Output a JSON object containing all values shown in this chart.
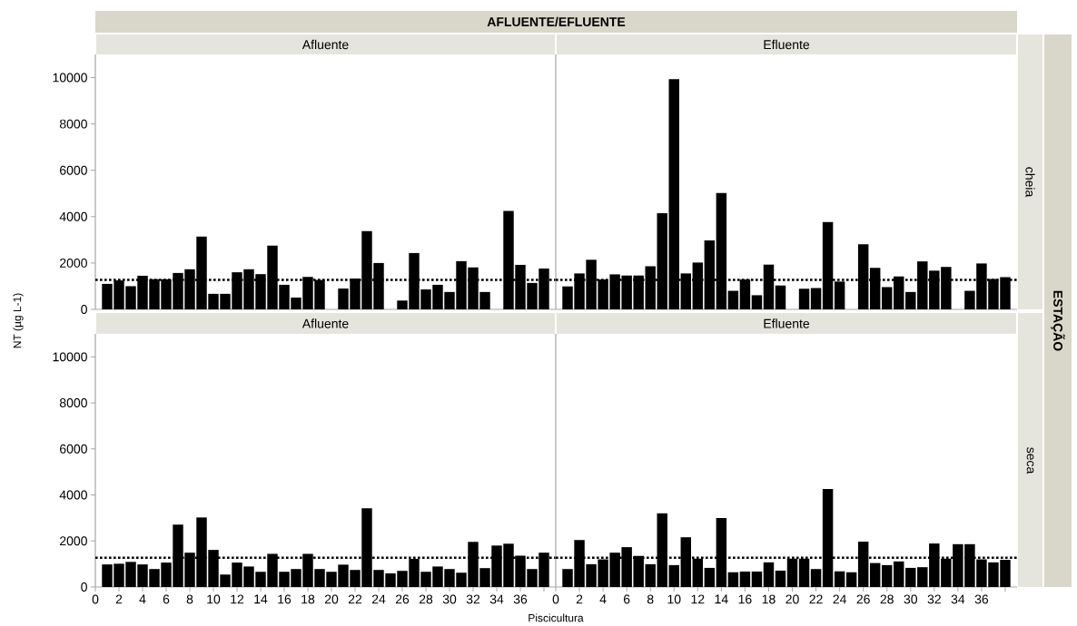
{
  "chart_data": [
    {
      "type": "bar",
      "title": "Afluente",
      "ylabel": "NT (µg L-1)",
      "annotations": [
        "AFLUENTE/EFLUENTE",
        "ESTAÇÃO"
      ],
      "color": "#000000",
      "tick_labels": "y",
      "x": [
        1,
        2,
        3,
        4,
        5,
        6,
        7,
        8,
        9,
        10,
        11,
        12,
        13,
        14,
        15,
        16,
        17,
        18,
        19,
        20,
        21,
        22,
        23,
        24,
        25,
        26,
        27,
        28,
        29,
        30,
        31,
        32,
        33,
        34,
        35,
        36,
        37,
        38
      ],
      "values": [
        1100,
        1250,
        1000,
        1450,
        1300,
        1300,
        1570,
        1730,
        3140,
        670,
        670,
        1600,
        1730,
        1520,
        2750,
        1060,
        510,
        1400,
        1270,
        null,
        900,
        1330,
        3380,
        2000,
        null,
        380,
        2430,
        860,
        1060,
        750,
        2080,
        1810,
        750,
        null,
        4250,
        1920,
        1140,
        1760
      ],
      "xlim": [
        0,
        39
      ],
      "ylim": [
        0,
        11000
      ],
      "yticks": [
        0,
        2000,
        4000,
        6000,
        8000,
        10000
      ],
      "ref_lines": [
        {
          "axis": "y",
          "value": 1270,
          "color": "#000000",
          "line_style": "dotted"
        }
      ]
    },
    {
      "type": "bar",
      "title": "Efluente",
      "annotations": [
        "cheia"
      ],
      "color": "#000000",
      "tick_labels": false,
      "x": [
        1,
        2,
        3,
        4,
        5,
        6,
        7,
        8,
        9,
        10,
        11,
        12,
        13,
        14,
        15,
        16,
        17,
        18,
        19,
        20,
        21,
        22,
        23,
        24,
        25,
        26,
        27,
        28,
        29,
        30,
        31,
        32,
        33,
        34,
        35,
        36,
        37,
        38
      ],
      "values": [
        990,
        1550,
        2140,
        1290,
        1510,
        1460,
        1460,
        1860,
        4150,
        9930,
        1550,
        2020,
        2970,
        5020,
        800,
        1290,
        610,
        1930,
        1030,
        null,
        890,
        920,
        3770,
        1200,
        null,
        2810,
        1790,
        960,
        1420,
        750,
        2070,
        1670,
        1830,
        null,
        800,
        1980,
        1310,
        1390
      ],
      "xlim": [
        0,
        39
      ],
      "ylim": [
        0,
        11000
      ],
      "yticks": [
        0,
        2000,
        4000,
        6000,
        8000,
        10000
      ],
      "ref_lines": [
        {
          "axis": "y",
          "value": 1270,
          "color": "#000000",
          "line_style": "dotted"
        }
      ]
    },
    {
      "type": "bar",
      "title": "Afluente",
      "xlabel": "Piscicultura",
      "color": "#000000",
      "x": [
        1,
        2,
        3,
        4,
        5,
        6,
        7,
        8,
        9,
        10,
        11,
        12,
        13,
        14,
        15,
        16,
        17,
        18,
        19,
        20,
        21,
        22,
        23,
        24,
        25,
        26,
        27,
        28,
        29,
        30,
        31,
        32,
        33,
        34,
        35,
        36,
        37,
        38
      ],
      "values": [
        980,
        1010,
        1090,
        980,
        780,
        1060,
        2710,
        1490,
        3020,
        1610,
        540,
        1060,
        890,
        660,
        1440,
        660,
        780,
        1440,
        780,
        660,
        970,
        740,
        3420,
        740,
        590,
        700,
        1220,
        660,
        890,
        780,
        620,
        1960,
        820,
        1800,
        1880,
        1360,
        780,
        1490
      ],
      "xlim": [
        0,
        39
      ],
      "xticks": [
        0,
        2,
        4,
        6,
        8,
        10,
        12,
        14,
        16,
        18,
        20,
        22,
        24,
        26,
        28,
        30,
        32,
        34,
        36,
        {
          "value": 38,
          "label": null
        }
      ],
      "ylim": [
        0,
        11000
      ],
      "yticks": [
        0,
        2000,
        4000,
        6000,
        8000,
        10000
      ],
      "ref_lines": [
        {
          "axis": "y",
          "value": 1270,
          "color": "#000000",
          "line_style": "dotted"
        }
      ]
    },
    {
      "type": "bar",
      "title": "Efluente",
      "annotations": [
        "seca"
      ],
      "color": "#000000",
      "tick_labels": "x",
      "x": [
        1,
        2,
        3,
        4,
        5,
        6,
        7,
        8,
        9,
        10,
        11,
        12,
        13,
        14,
        15,
        16,
        17,
        18,
        19,
        20,
        21,
        22,
        23,
        24,
        25,
        26,
        27,
        28,
        29,
        30,
        31,
        32,
        33,
        34,
        35,
        36,
        37,
        38
      ],
      "values": [
        780,
        2040,
        990,
        1200,
        1490,
        1730,
        1350,
        990,
        3200,
        950,
        2160,
        1230,
        830,
        3000,
        640,
        670,
        670,
        1070,
        710,
        1230,
        1230,
        780,
        4260,
        680,
        640,
        1970,
        1040,
        950,
        1110,
        830,
        860,
        1890,
        1230,
        1860,
        1860,
        1200,
        1070,
        1180
      ],
      "xlim": [
        0,
        39
      ],
      "xticks": [
        0,
        2,
        4,
        6,
        8,
        10,
        12,
        14,
        16,
        18,
        20,
        22,
        24,
        26,
        28,
        30,
        32,
        34,
        36,
        {
          "value": 38,
          "label": null
        }
      ],
      "ylim": [
        0,
        11000
      ],
      "yticks": [
        0,
        2000,
        4000,
        6000,
        8000,
        10000
      ],
      "ref_lines": [
        {
          "axis": "y",
          "value": 1270,
          "color": "#000000",
          "line_style": "dotted"
        }
      ]
    }
  ]
}
